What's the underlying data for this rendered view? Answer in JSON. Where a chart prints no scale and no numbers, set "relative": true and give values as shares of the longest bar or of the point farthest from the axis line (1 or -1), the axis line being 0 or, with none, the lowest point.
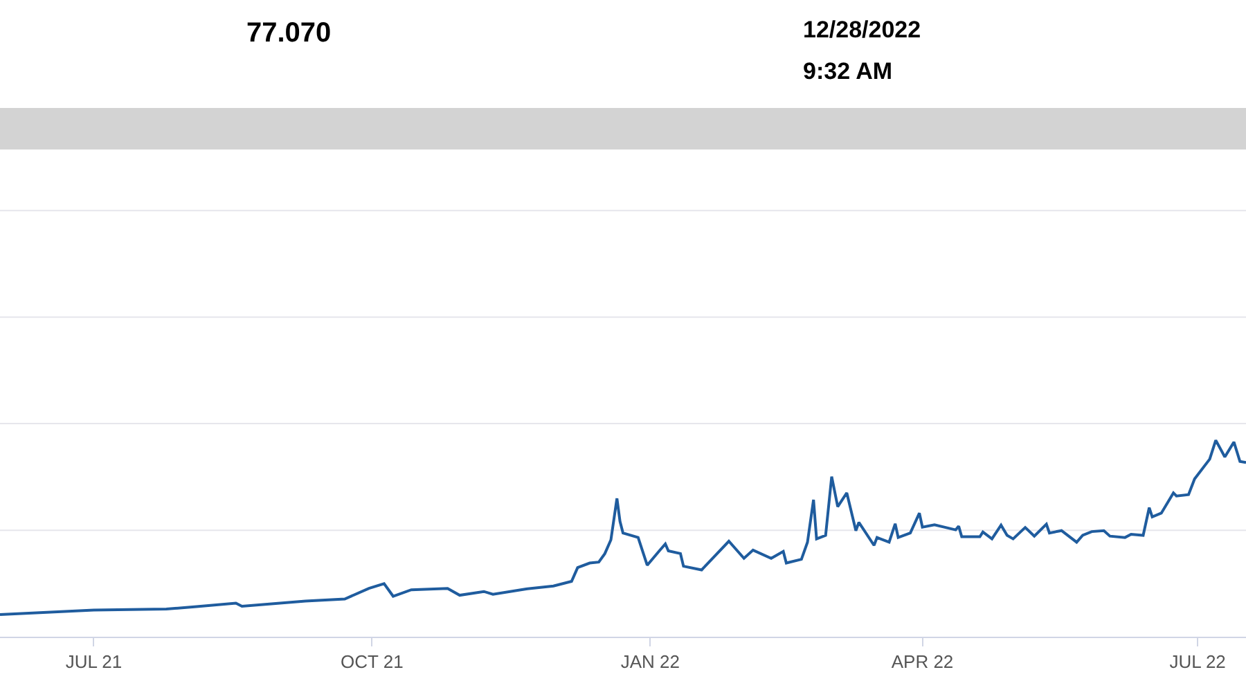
{
  "chart_data": {
    "type": "line",
    "relative": true,
    "ref_lines": [
      {
        "axis": "y",
        "value": 0.542,
        "color": "#e6e6ec"
      },
      {
        "axis": "y",
        "value": 1.085,
        "color": "#e6e6ec"
      },
      {
        "axis": "y",
        "value": 1.627,
        "color": "#e6e6ec"
      },
      {
        "axis": "y",
        "value": 2.169,
        "color": "#e6e6ec"
      }
    ],
    "marker": "none",
    "line_style": "solid",
    "annotations": [
      "77.070",
      "12/28/2022",
      "9:32 AM"
    ],
    "xlim": [
      "2021-05-31",
      "2022-07-17"
    ],
    "xticks": [
      {
        "value": "2021-07-01",
        "label": "JUL 21"
      },
      {
        "value": "2021-10-01",
        "label": "OCT 21"
      },
      {
        "value": "2022-01-01",
        "label": "JAN 22"
      },
      {
        "value": "2022-04-01",
        "label": "APR 22"
      },
      {
        "value": "2022-07-01",
        "label": "JUL 22"
      }
    ],
    "x": [
      "2021-05-31",
      "2021-07-01",
      "2021-07-25",
      "2021-08-04",
      "2021-08-17",
      "2021-08-19",
      "2021-09-09",
      "2021-09-22",
      "2021-09-30",
      "2021-10-05",
      "2021-10-08",
      "2021-10-14",
      "2021-10-26",
      "2021-10-30",
      "2021-11-07",
      "2021-11-10",
      "2021-11-21",
      "2021-11-30",
      "2021-12-06",
      "2021-12-08",
      "2021-12-12",
      "2021-12-15",
      "2021-12-17",
      "2021-12-19",
      "2021-12-21",
      "2021-12-22",
      "2021-12-23",
      "2021-12-28",
      "2021-12-31",
      "2022-01-04",
      "2022-01-06",
      "2022-01-07",
      "2022-01-11",
      "2022-01-12",
      "2022-01-18",
      "2022-01-27",
      "2022-02-01",
      "2022-02-04",
      "2022-02-10",
      "2022-02-14",
      "2022-02-15",
      "2022-02-20",
      "2022-02-22",
      "2022-02-24",
      "2022-02-25",
      "2022-02-28",
      "2022-03-02",
      "2022-03-04",
      "2022-03-07",
      "2022-03-10",
      "2022-03-11",
      "2022-03-16",
      "2022-03-17",
      "2022-03-21",
      "2022-03-23",
      "2022-03-24",
      "2022-03-28",
      "2022-03-31",
      "2022-04-01",
      "2022-04-05",
      "2022-04-12",
      "2022-04-13",
      "2022-04-14",
      "2022-04-20",
      "2022-04-21",
      "2022-04-24",
      "2022-04-27",
      "2022-04-29",
      "2022-05-01",
      "2022-05-05",
      "2022-05-08",
      "2022-05-12",
      "2022-05-13",
      "2022-05-17",
      "2022-05-22",
      "2022-05-24",
      "2022-05-27",
      "2022-05-31",
      "2022-06-02",
      "2022-06-07",
      "2022-06-09",
      "2022-06-13",
      "2022-06-15",
      "2022-06-16",
      "2022-06-19",
      "2022-06-23",
      "2022-06-24",
      "2022-06-28",
      "2022-06-30",
      "2022-07-05",
      "2022-07-07",
      "2022-07-10",
      "2022-07-13",
      "2022-07-15",
      "2022-07-17"
    ],
    "series": [
      {
        "color": "#1f5c9e",
        "values": [
          0.113,
          0.136,
          0.141,
          0.153,
          0.171,
          0.155,
          0.181,
          0.192,
          0.246,
          0.27,
          0.206,
          0.239,
          0.246,
          0.211,
          0.23,
          0.216,
          0.243,
          0.258,
          0.282,
          0.352,
          0.375,
          0.38,
          0.423,
          0.493,
          0.704,
          0.587,
          0.528,
          0.505,
          0.364,
          0.437,
          0.472,
          0.437,
          0.423,
          0.359,
          0.34,
          0.486,
          0.399,
          0.441,
          0.399,
          0.434,
          0.375,
          0.394,
          0.481,
          0.697,
          0.498,
          0.516,
          0.815,
          0.662,
          0.732,
          0.54,
          0.582,
          0.465,
          0.505,
          0.481,
          0.575,
          0.505,
          0.528,
          0.629,
          0.558,
          0.57,
          0.544,
          0.563,
          0.509,
          0.509,
          0.533,
          0.498,
          0.568,
          0.516,
          0.498,
          0.556,
          0.512,
          0.573,
          0.528,
          0.54,
          0.481,
          0.516,
          0.535,
          0.54,
          0.512,
          0.505,
          0.521,
          0.516,
          0.657,
          0.61,
          0.629,
          0.732,
          0.716,
          0.723,
          0.803,
          0.904,
          1,
          0.915,
          0.991,
          0.892,
          0.887
        ]
      }
    ]
  }
}
